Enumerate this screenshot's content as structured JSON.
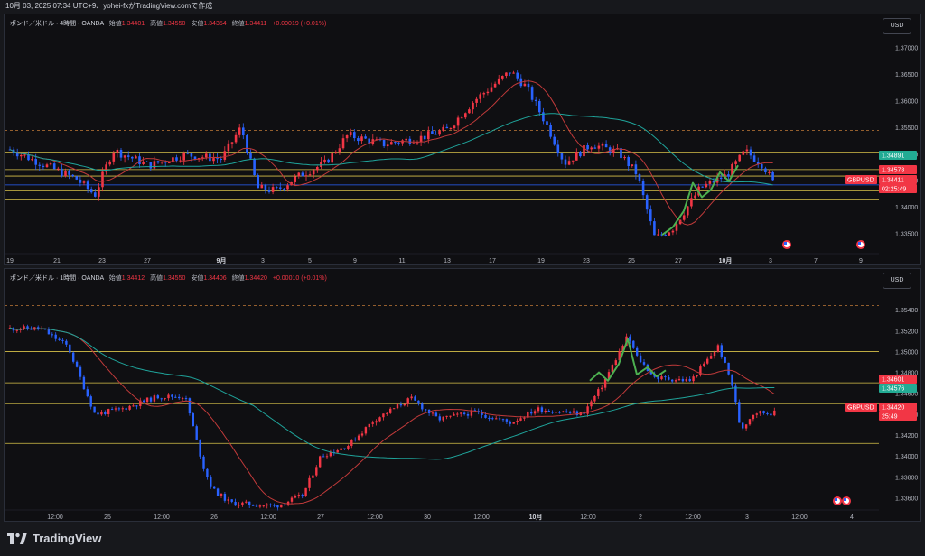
{
  "header": {
    "timestamp_line": "10月 03, 2025 07:34 UTC+9、yohei-fxがTradingView.comで作成"
  },
  "charts": [
    {
      "legend": {
        "symbol": "ポンド／米ドル · 4時間 · OANDA",
        "open_label": "始値",
        "open": "1.34401",
        "high_label": "高値",
        "high": "1.34550",
        "low_label": "安値",
        "low": "1.34354",
        "close_label": "終値",
        "close": "1.34411",
        "change": "+0.00019 (+0.01%)"
      },
      "currency": "USD",
      "price_ticks": [
        "1.37000",
        "1.36500",
        "1.36000",
        "1.35500",
        "1.35000",
        "1.34500",
        "1.34000",
        "1.33500"
      ],
      "time_ticks": [
        "19",
        "21",
        "23",
        "27",
        "9月",
        "3",
        "5",
        "9",
        "11",
        "13",
        "17",
        "19",
        "23",
        "25",
        "27",
        "10月",
        "3",
        "7",
        "9"
      ],
      "price_labels": [
        {
          "text": "1.34891",
          "kind": "teal"
        },
        {
          "text": "1.34578",
          "kind": "red"
        },
        {
          "text": "1.34411",
          "kind": "red"
        },
        {
          "text": "02:25:49",
          "kind": "red"
        },
        {
          "text": "GBPUSD",
          "kind": "red"
        }
      ],
      "chart_data": {
        "type": "candlestick",
        "symbol": "GBPUSD",
        "timeframe": "4時間",
        "ylim": [
          1.3315,
          1.3725
        ],
        "last": 1.34411,
        "hlines": [
          1.3544,
          1.3503,
          1.347,
          1.34578,
          1.343,
          1.3413
        ]
      }
    },
    {
      "legend": {
        "symbol": "ポンド／米ドル · 1時間 · OANDA",
        "open_label": "始値",
        "open": "1.34412",
        "high_label": "高値",
        "high": "1.34550",
        "low_label": "安値",
        "low": "1.34406",
        "close_label": "終値",
        "close": "1.34420",
        "change": "+0.00010 (+0.01%)"
      },
      "currency": "USD",
      "price_ticks": [
        "1.35400",
        "1.35200",
        "1.35000",
        "1.34800",
        "1.34600",
        "1.34400",
        "1.34200",
        "1.34000",
        "1.33800",
        "1.33600"
      ],
      "time_ticks": [
        "12:00",
        "25",
        "12:00",
        "26",
        "12:00",
        "27",
        "12:00",
        "30",
        "12:00",
        "10月",
        "12:00",
        "2",
        "12:00",
        "3",
        "12:00",
        "4"
      ],
      "price_labels": [
        {
          "text": "1.34601",
          "kind": "red"
        },
        {
          "text": "1.34576",
          "kind": "teal"
        },
        {
          "text": "GBPUSD",
          "kind": "red"
        },
        {
          "text": "1.34420",
          "kind": "red"
        },
        {
          "text": "25:49",
          "kind": "red"
        }
      ],
      "chart_data": {
        "type": "candlestick",
        "symbol": "GBPUSD",
        "timeframe": "1時間",
        "ylim": [
          1.335,
          1.356
        ],
        "last": 1.3442,
        "hlines": [
          1.3544,
          1.35,
          1.347,
          1.345,
          1.3412
        ]
      }
    }
  ],
  "brand": {
    "name": "TradingView"
  },
  "colors": {
    "up": "#f23645",
    "down": "#2962ff",
    "ma_short": "#c03a3a",
    "ma_long": "#1fa39a",
    "hline": "#d8c24a",
    "pattern": "#4caf50",
    "bg": "#0f0f12"
  }
}
